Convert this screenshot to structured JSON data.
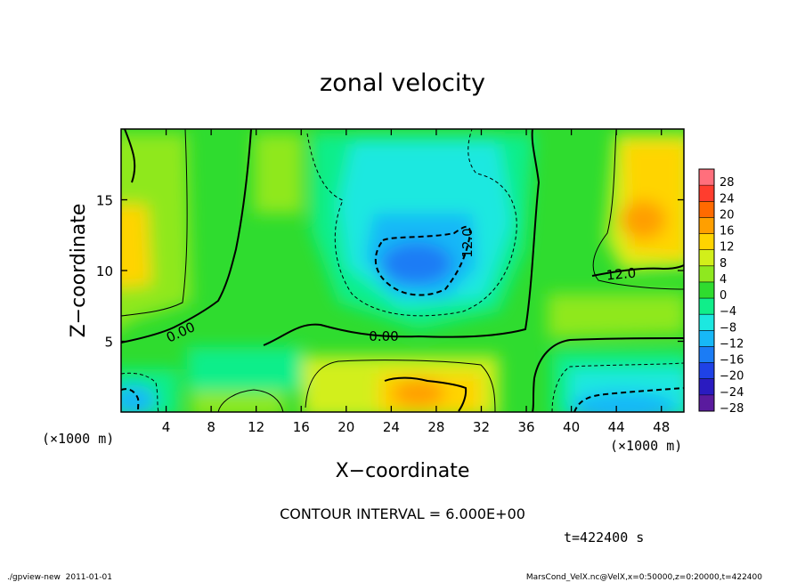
{
  "chart_data": {
    "type": "heatmap",
    "title": "zonal velocity",
    "xlabel": "X−coordinate",
    "ylabel": "Z−coordinate",
    "x_unit_left": "(×1000 m)",
    "x_unit_right": "(×1000 m)",
    "xlim": [
      0,
      50
    ],
    "ylim": [
      0,
      20
    ],
    "xticks": [
      4,
      8,
      12,
      16,
      20,
      24,
      28,
      32,
      36,
      40,
      44,
      48
    ],
    "yticks": [
      5,
      10,
      15
    ],
    "colorbar": {
      "levels": [
        28,
        24,
        20,
        16,
        12,
        8,
        4,
        0,
        -4,
        -8,
        -12,
        -16,
        -20,
        -24,
        -28
      ],
      "labels": [
        "28",
        "24",
        "20",
        "16",
        "12",
        "8",
        "4",
        "0",
        "−4",
        "−8",
        "−12",
        "−16",
        "−20",
        "−24",
        "−28"
      ],
      "colors": [
        "#ff6f7c",
        "#ff3d2e",
        "#ff6a00",
        "#ff9f00",
        "#ffd400",
        "#d2ef1a",
        "#8fe81f",
        "#2fdc2f",
        "#10ee8a",
        "#1ce8e0",
        "#17b8f7",
        "#1b7cf5",
        "#1f42e6",
        "#2a1bc0",
        "#5a1b9e"
      ]
    },
    "contour_labels": [
      "0.00",
      "0.00",
      "12.0",
      "12.0"
    ],
    "contour_interval_text": "CONTOUR INTERVAL = 6.000E+00"
  },
  "time_label": "t=422400 s",
  "footer_left": "./gpview-new  2011-01-01",
  "footer_right": "MarsCond_VelX.nc@VelX,x=0:50000,z=0:20000,t=422400"
}
